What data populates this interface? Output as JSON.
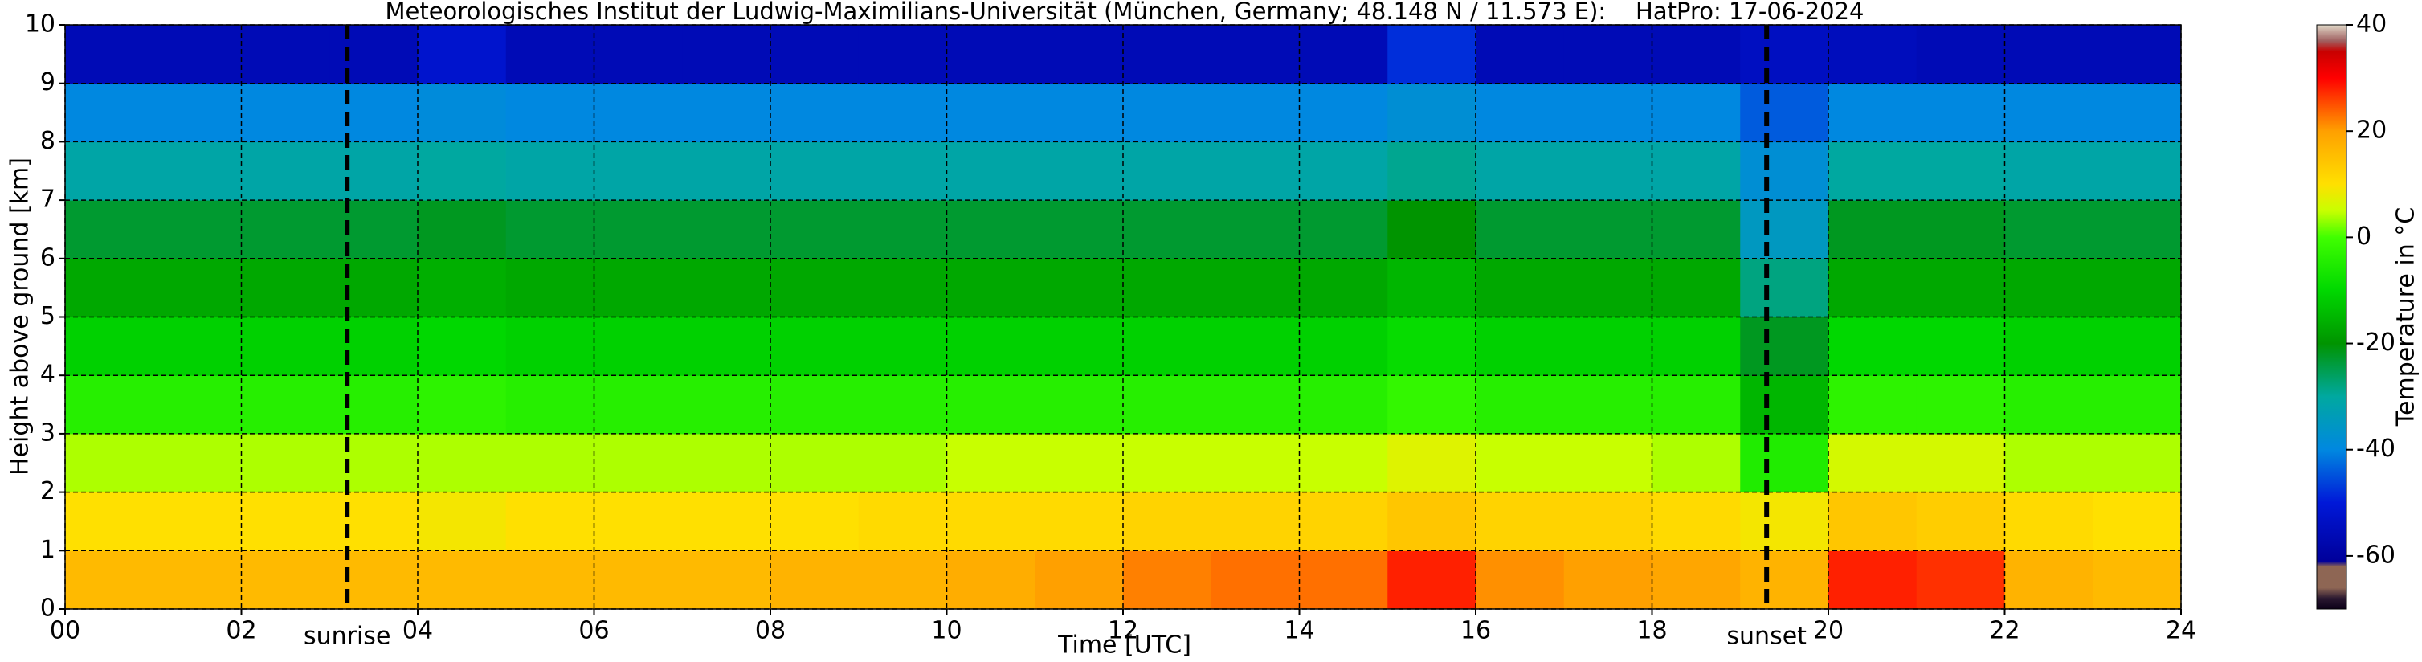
{
  "chart_data": {
    "type": "heatmap",
    "title": "Meteorologisches Institut der Ludwig-Maximilians-Universität (München, Germany; 48.148 N / 11.573 E):    HatPro: 17-06-2024",
    "x_label": "Time [UTC]",
    "y_label": "Height above ground [km]",
    "colorbar_label": "Temperature in $^\\circ$C",
    "x": [
      0,
      1,
      2,
      3,
      4,
      5,
      6,
      7,
      8,
      9,
      10,
      11,
      12,
      13,
      14,
      15,
      16,
      17,
      18,
      19,
      20,
      21,
      22,
      23,
      24
    ],
    "y": [
      0,
      1,
      2,
      3,
      4,
      5,
      6,
      7,
      8,
      9,
      10
    ],
    "values": [
      [
        16,
        16,
        16,
        16,
        16,
        16,
        16,
        16,
        17,
        17,
        18,
        20,
        22,
        23,
        23,
        28,
        21,
        20,
        19,
        17,
        28,
        27,
        17,
        16
      ],
      [
        10,
        10,
        10,
        10,
        9,
        10,
        10,
        10,
        10,
        11,
        11,
        11,
        12,
        12,
        12,
        14,
        12,
        12,
        11,
        9,
        14,
        13,
        11,
        10
      ],
      [
        4,
        4,
        4,
        4,
        4,
        4,
        4,
        4,
        4,
        4,
        5,
        5,
        5,
        5,
        5,
        7,
        5,
        5,
        4,
        -5,
        6,
        6,
        4,
        4
      ],
      [
        -4,
        -4,
        -4,
        -4,
        -3,
        -4,
        -4,
        -4,
        -4,
        -4,
        -4,
        -4,
        -4,
        -4,
        -4,
        -2,
        -4,
        -4,
        -4,
        -15,
        -3,
        -3,
        -4,
        -4
      ],
      [
        -11,
        -11,
        -11,
        -11,
        -10,
        -11,
        -11,
        -11,
        -11,
        -11,
        -11,
        -11,
        -11,
        -11,
        -11,
        -9,
        -11,
        -11,
        -11,
        -22,
        -10,
        -10,
        -11,
        -11
      ],
      [
        -17,
        -17,
        -17,
        -17,
        -16,
        -17,
        -17,
        -17,
        -17,
        -17,
        -17,
        -17,
        -17,
        -17,
        -17,
        -15,
        -17,
        -17,
        -17,
        -28,
        -17,
        -17,
        -17,
        -17
      ],
      [
        -23,
        -23,
        -23,
        -23,
        -22,
        -23,
        -23,
        -23,
        -23,
        -23,
        -23,
        -23,
        -23,
        -23,
        -23,
        -20,
        -23,
        -23,
        -23,
        -35,
        -22,
        -22,
        -23,
        -23
      ],
      [
        -31,
        -31,
        -31,
        -31,
        -30,
        -31,
        -31,
        -31,
        -31,
        -31,
        -31,
        -31,
        -31,
        -31,
        -31,
        -29,
        -31,
        -31,
        -31,
        -38,
        -30,
        -30,
        -31,
        -31
      ],
      [
        -40,
        -40,
        -40,
        -40,
        -39,
        -40,
        -40,
        -40,
        -40,
        -40,
        -40,
        -40,
        -40,
        -40,
        -40,
        -38,
        -40,
        -40,
        -40,
        -44,
        -40,
        -40,
        -40,
        -40
      ],
      [
        -56,
        -56,
        -56,
        -56,
        -52,
        -56,
        -56,
        -56,
        -56,
        -56,
        -56,
        -56,
        -56,
        -56,
        -56,
        -48,
        -56,
        -56,
        -56,
        -54,
        -55,
        -56,
        -56,
        -56
      ]
    ],
    "xlim": [
      0,
      24
    ],
    "ylim": [
      0,
      10
    ],
    "xticks": [
      {
        "value": 0,
        "label": "00"
      },
      {
        "value": 2,
        "label": "02"
      },
      {
        "value": 4,
        "label": "04"
      },
      {
        "value": 6,
        "label": "06"
      },
      {
        "value": 8,
        "label": "08"
      },
      {
        "value": 10,
        "label": "10"
      },
      {
        "value": 12,
        "label": "12"
      },
      {
        "value": 14,
        "label": "14"
      },
      {
        "value": 16,
        "label": "16"
      },
      {
        "value": 18,
        "label": "18"
      },
      {
        "value": 20,
        "label": "20"
      },
      {
        "value": 22,
        "label": "22"
      },
      {
        "value": 24,
        "label": "24"
      }
    ],
    "yticks": [
      0,
      1,
      2,
      3,
      4,
      5,
      6,
      7,
      8,
      9,
      10
    ],
    "grid": true,
    "clim": [
      -70,
      40
    ],
    "cticks": [
      -60,
      -40,
      -20,
      0,
      20,
      40
    ],
    "colorscale": [
      [
        -70,
        "#0c0018"
      ],
      [
        -68,
        "#2a1830"
      ],
      [
        -66,
        "#8e6654"
      ],
      [
        -62,
        "#8e6654"
      ],
      [
        -61,
        "#00009a"
      ],
      [
        -50,
        "#0018d8"
      ],
      [
        -40,
        "#0088e0"
      ],
      [
        -30,
        "#00a8a0"
      ],
      [
        -20,
        "#009400"
      ],
      [
        -10,
        "#00d800"
      ],
      [
        0,
        "#40ff00"
      ],
      [
        5,
        "#c8ff00"
      ],
      [
        10,
        "#ffe000"
      ],
      [
        20,
        "#ffa000"
      ],
      [
        26,
        "#ff4000"
      ],
      [
        30,
        "#ff0000"
      ],
      [
        35,
        "#c80000"
      ],
      [
        37,
        "#a06060"
      ],
      [
        40,
        "#e0d8c8"
      ]
    ],
    "annotations": [
      {
        "x": 3.2,
        "label": "sunrise"
      },
      {
        "x": 19.3,
        "label": "sunset"
      }
    ]
  }
}
